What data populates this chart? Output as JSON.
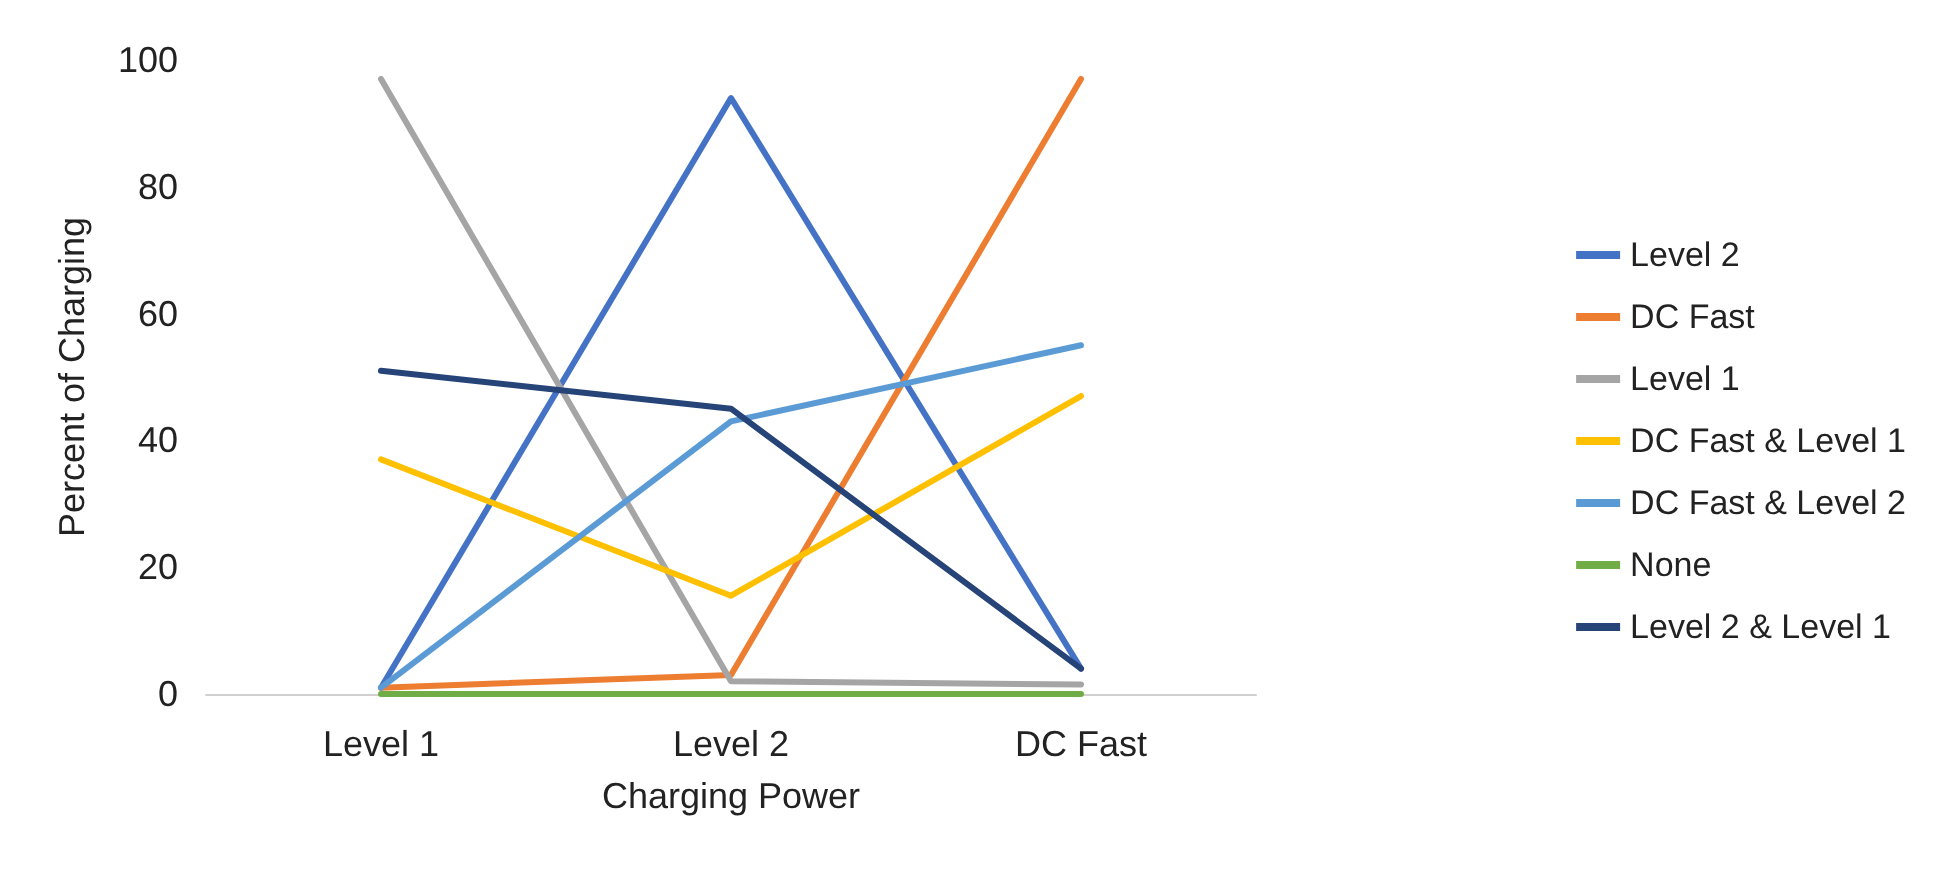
{
  "chart_data": {
    "type": "line",
    "xlabel": "Charging Power",
    "ylabel": "Percent of Charging",
    "categories": [
      "Level 1",
      "Level 2",
      "DC Fast"
    ],
    "series": [
      {
        "name": "Level 2",
        "color": "#4472c4",
        "values": [
          1,
          94,
          4
        ]
      },
      {
        "name": "DC Fast",
        "color": "#ed7d31",
        "values": [
          1,
          3,
          97
        ]
      },
      {
        "name": "Level 1",
        "color": "#a5a5a5",
        "values": [
          97,
          2,
          1.5
        ]
      },
      {
        "name": "DC Fast & Level 1",
        "color": "#ffc000",
        "values": [
          37,
          15.5,
          47
        ]
      },
      {
        "name": "DC Fast & Level 2",
        "color": "#5b9bd5",
        "values": [
          1,
          43,
          55
        ]
      },
      {
        "name": "None",
        "color": "#70ad47",
        "values": [
          0,
          0,
          0
        ]
      },
      {
        "name": "Level 2 & Level 1",
        "color": "#264478",
        "values": [
          51,
          45,
          4
        ]
      }
    ],
    "ylim": [
      0,
      100
    ],
    "yticks": [
      0,
      20,
      40,
      60,
      80,
      100
    ],
    "grid": false,
    "legend": "right",
    "marker": "none",
    "line_style": "solid"
  }
}
